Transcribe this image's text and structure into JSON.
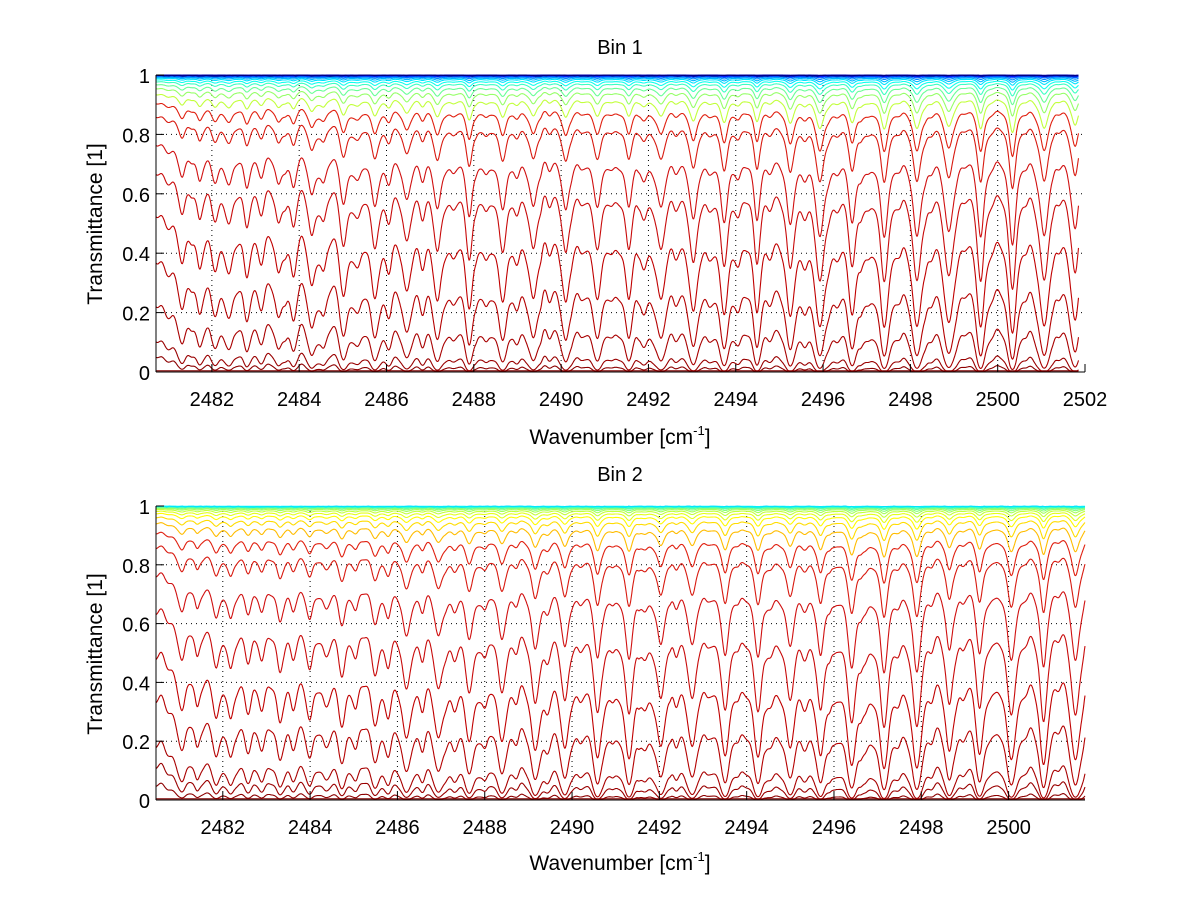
{
  "chart_data": [
    {
      "type": "line",
      "title": "Bin 1",
      "xlabel": "Wavenumber [cm",
      "xlabel_sup": "-1",
      "xlabel_end": "]",
      "ylabel": "Transmittance [1]",
      "xlim": [
        2480.72,
        2502
      ],
      "ylim": [
        0,
        1
      ],
      "xticks": [
        2482,
        2484,
        2486,
        2488,
        2490,
        2492,
        2494,
        2496,
        2498,
        2500,
        2502
      ],
      "xtick_labels": [
        "2482",
        "2484",
        "2486",
        "2488",
        "2490",
        "2492",
        "2494",
        "2496",
        "2498",
        "2500",
        "2502"
      ],
      "yticks": [
        0,
        0.2,
        0.4,
        0.6,
        0.8,
        1
      ],
      "ytick_labels": [
        "0",
        "0.2",
        "0.4",
        "0.6",
        "0.8",
        "1"
      ],
      "grid": true,
      "x_data_end": 2501.85,
      "continuum_transmittance_at_2495.5": [
        0.0,
        0.01,
        0.03,
        0.098,
        0.215,
        0.37,
        0.535,
        0.66,
        0.79,
        0.855,
        0.9,
        0.93,
        0.95,
        0.965,
        0.975,
        0.983,
        0.988,
        0.992,
        0.995,
        0.997,
        0.998,
        0.999,
        0.9995,
        1.0
      ],
      "series_colormap": "jet",
      "series_color_range": [
        0.0,
        1.0
      ],
      "line_spacing_cm-1": 0.73,
      "first_line_cm-1": 2481.35,
      "series_count": 24
    },
    {
      "type": "line",
      "title": "Bin 2",
      "xlabel": "Wavenumber [cm",
      "xlabel_sup": "-1",
      "xlabel_end": "]",
      "ylabel": "Transmittance [1]",
      "xlim": [
        2480.47,
        2501.75
      ],
      "ylim": [
        0,
        1
      ],
      "xticks": [
        2482,
        2484,
        2486,
        2488,
        2490,
        2492,
        2494,
        2496,
        2498,
        2500
      ],
      "xtick_labels": [
        "2482",
        "2484",
        "2486",
        "2488",
        "2490",
        "2492",
        "2494",
        "2496",
        "2498",
        "2500"
      ],
      "yticks": [
        0,
        0.2,
        0.4,
        0.6,
        0.8,
        1
      ],
      "ytick_labels": [
        "0",
        "0.2",
        "0.4",
        "0.6",
        "0.8",
        "1"
      ],
      "grid": true,
      "x_data_end": 2501.75,
      "continuum_transmittance_at_2495.5": [
        0.0,
        0.01,
        0.035,
        0.075,
        0.19,
        0.33,
        0.5,
        0.66,
        0.79,
        0.86,
        0.91,
        0.94,
        0.96,
        0.972,
        0.981,
        0.987,
        0.991,
        0.994,
        0.996,
        0.998,
        0.999,
        1.0
      ],
      "series_colormap": "jet",
      "series_color_range": [
        0.35,
        1.0
      ],
      "line_spacing_cm-1": 0.73,
      "first_line_cm-1": 2481.1,
      "series_count": 22
    }
  ]
}
